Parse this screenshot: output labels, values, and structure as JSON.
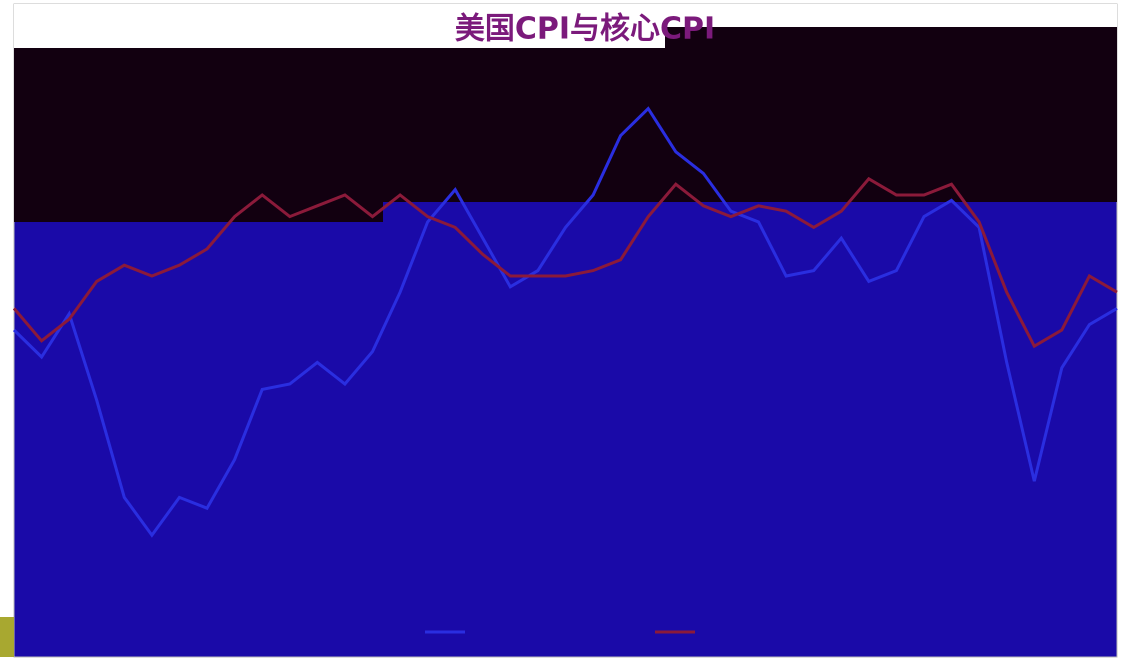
{
  "chart_data": {
    "type": "line",
    "title": "美国CPI与核心CPI",
    "ylim": [
      0,
      100
    ],
    "series": [
      {
        "color": "#2a2ee0",
        "values": [
          50,
          45,
          53,
          37,
          19,
          12,
          19,
          17,
          26,
          39,
          40,
          44,
          40,
          46,
          57,
          70,
          76,
          67,
          58,
          61,
          69,
          75,
          86,
          91,
          83,
          79,
          72,
          70,
          60,
          61,
          67,
          59,
          61,
          71,
          74,
          69,
          44,
          22,
          43,
          51,
          54
        ]
      },
      {
        "color": "#8b1a3a",
        "values": [
          54,
          48,
          52,
          59,
          62,
          60,
          62,
          65,
          71,
          75,
          71,
          73,
          75,
          71,
          75,
          71,
          69,
          64,
          60,
          60,
          60,
          61,
          63,
          71,
          77,
          73,
          71,
          73,
          72,
          69,
          72,
          78,
          75,
          75,
          77,
          70,
          57,
          47,
          50,
          60,
          57
        ]
      }
    ]
  }
}
